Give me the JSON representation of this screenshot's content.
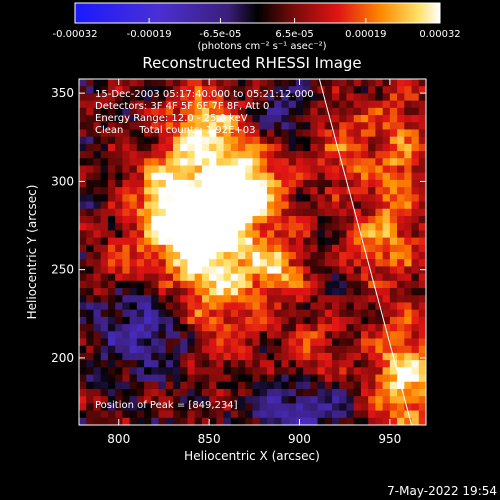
{
  "chart_data": {
    "type": "heatmap",
    "title": "Reconstructed RHESSI Image",
    "xlabel": "Heliocentric X (arcsec)",
    "ylabel": "Heliocentric Y (arcsec)",
    "xlim": [
      778,
      970
    ],
    "ylim": [
      162,
      358
    ],
    "xticks": [
      800,
      850,
      900,
      950
    ],
    "yticks": [
      200,
      250,
      300,
      350
    ],
    "colorbar": {
      "range": [
        -0.00032,
        0.00032
      ],
      "ticks": [
        -0.00032,
        -0.00019,
        -6.5e-05,
        6.5e-05,
        0.00019,
        0.00032
      ],
      "tick_labels": [
        "-0.00032",
        "-0.00019",
        "-6.5e-05",
        "6.5e-05",
        "0.00019",
        "0.00032"
      ],
      "unit_label": "(photons cm⁻² s⁻¹ asec⁻²)"
    },
    "annotations": [
      "15-Dec-2003 05:17:40.000 to 05:21:12.000",
      "Detectors: 3F 4F 5F 6F 7F 8F, Att 0",
      "Energy Range: 12.0 - 25.0 keV",
      "Clean     Total counts: 1.92E+03"
    ],
    "peak_label": "Position of Peak = [849,234]",
    "peak_position": [
      849,
      234
    ],
    "limb_line": [
      [
        911,
        358
      ],
      [
        962,
        162
      ]
    ],
    "sources": [
      {
        "x": 852,
        "y": 268,
        "sx": 20,
        "sy": 38,
        "amp": 0.00032
      },
      {
        "x": 828,
        "y": 285,
        "sx": 14,
        "sy": 20,
        "amp": 0.00022
      },
      {
        "x": 875,
        "y": 298,
        "sx": 14,
        "sy": 14,
        "amp": 0.0002
      },
      {
        "x": 847,
        "y": 332,
        "sx": 12,
        "sy": 14,
        "amp": 0.00017
      },
      {
        "x": 889,
        "y": 250,
        "sx": 10,
        "sy": 12,
        "amp": 0.00016
      },
      {
        "x": 958,
        "y": 185,
        "sx": 14,
        "sy": 22,
        "amp": 0.00024
      },
      {
        "x": 955,
        "y": 300,
        "sx": 11,
        "sy": 42,
        "amp": 0.00016
      },
      {
        "x": 925,
        "y": 318,
        "sx": 12,
        "sy": 18,
        "amp": 0.00013
      },
      {
        "x": 938,
        "y": 265,
        "sx": 10,
        "sy": 12,
        "amp": 0.00013
      },
      {
        "x": 800,
        "y": 250,
        "sx": 10,
        "sy": 12,
        "amp": 0.00011
      },
      {
        "x": 910,
        "y": 205,
        "sx": 12,
        "sy": 12,
        "amp": 0.00011
      },
      {
        "x": 815,
        "y": 220,
        "sx": 20,
        "sy": 20,
        "amp": -0.00016
      },
      {
        "x": 900,
        "y": 170,
        "sx": 20,
        "sy": 12,
        "amp": -0.00014
      },
      {
        "x": 890,
        "y": 340,
        "sx": 12,
        "sy": 14,
        "amp": -0.0001
      }
    ]
  },
  "footer": {
    "date": "7-May-2022 19:54"
  }
}
